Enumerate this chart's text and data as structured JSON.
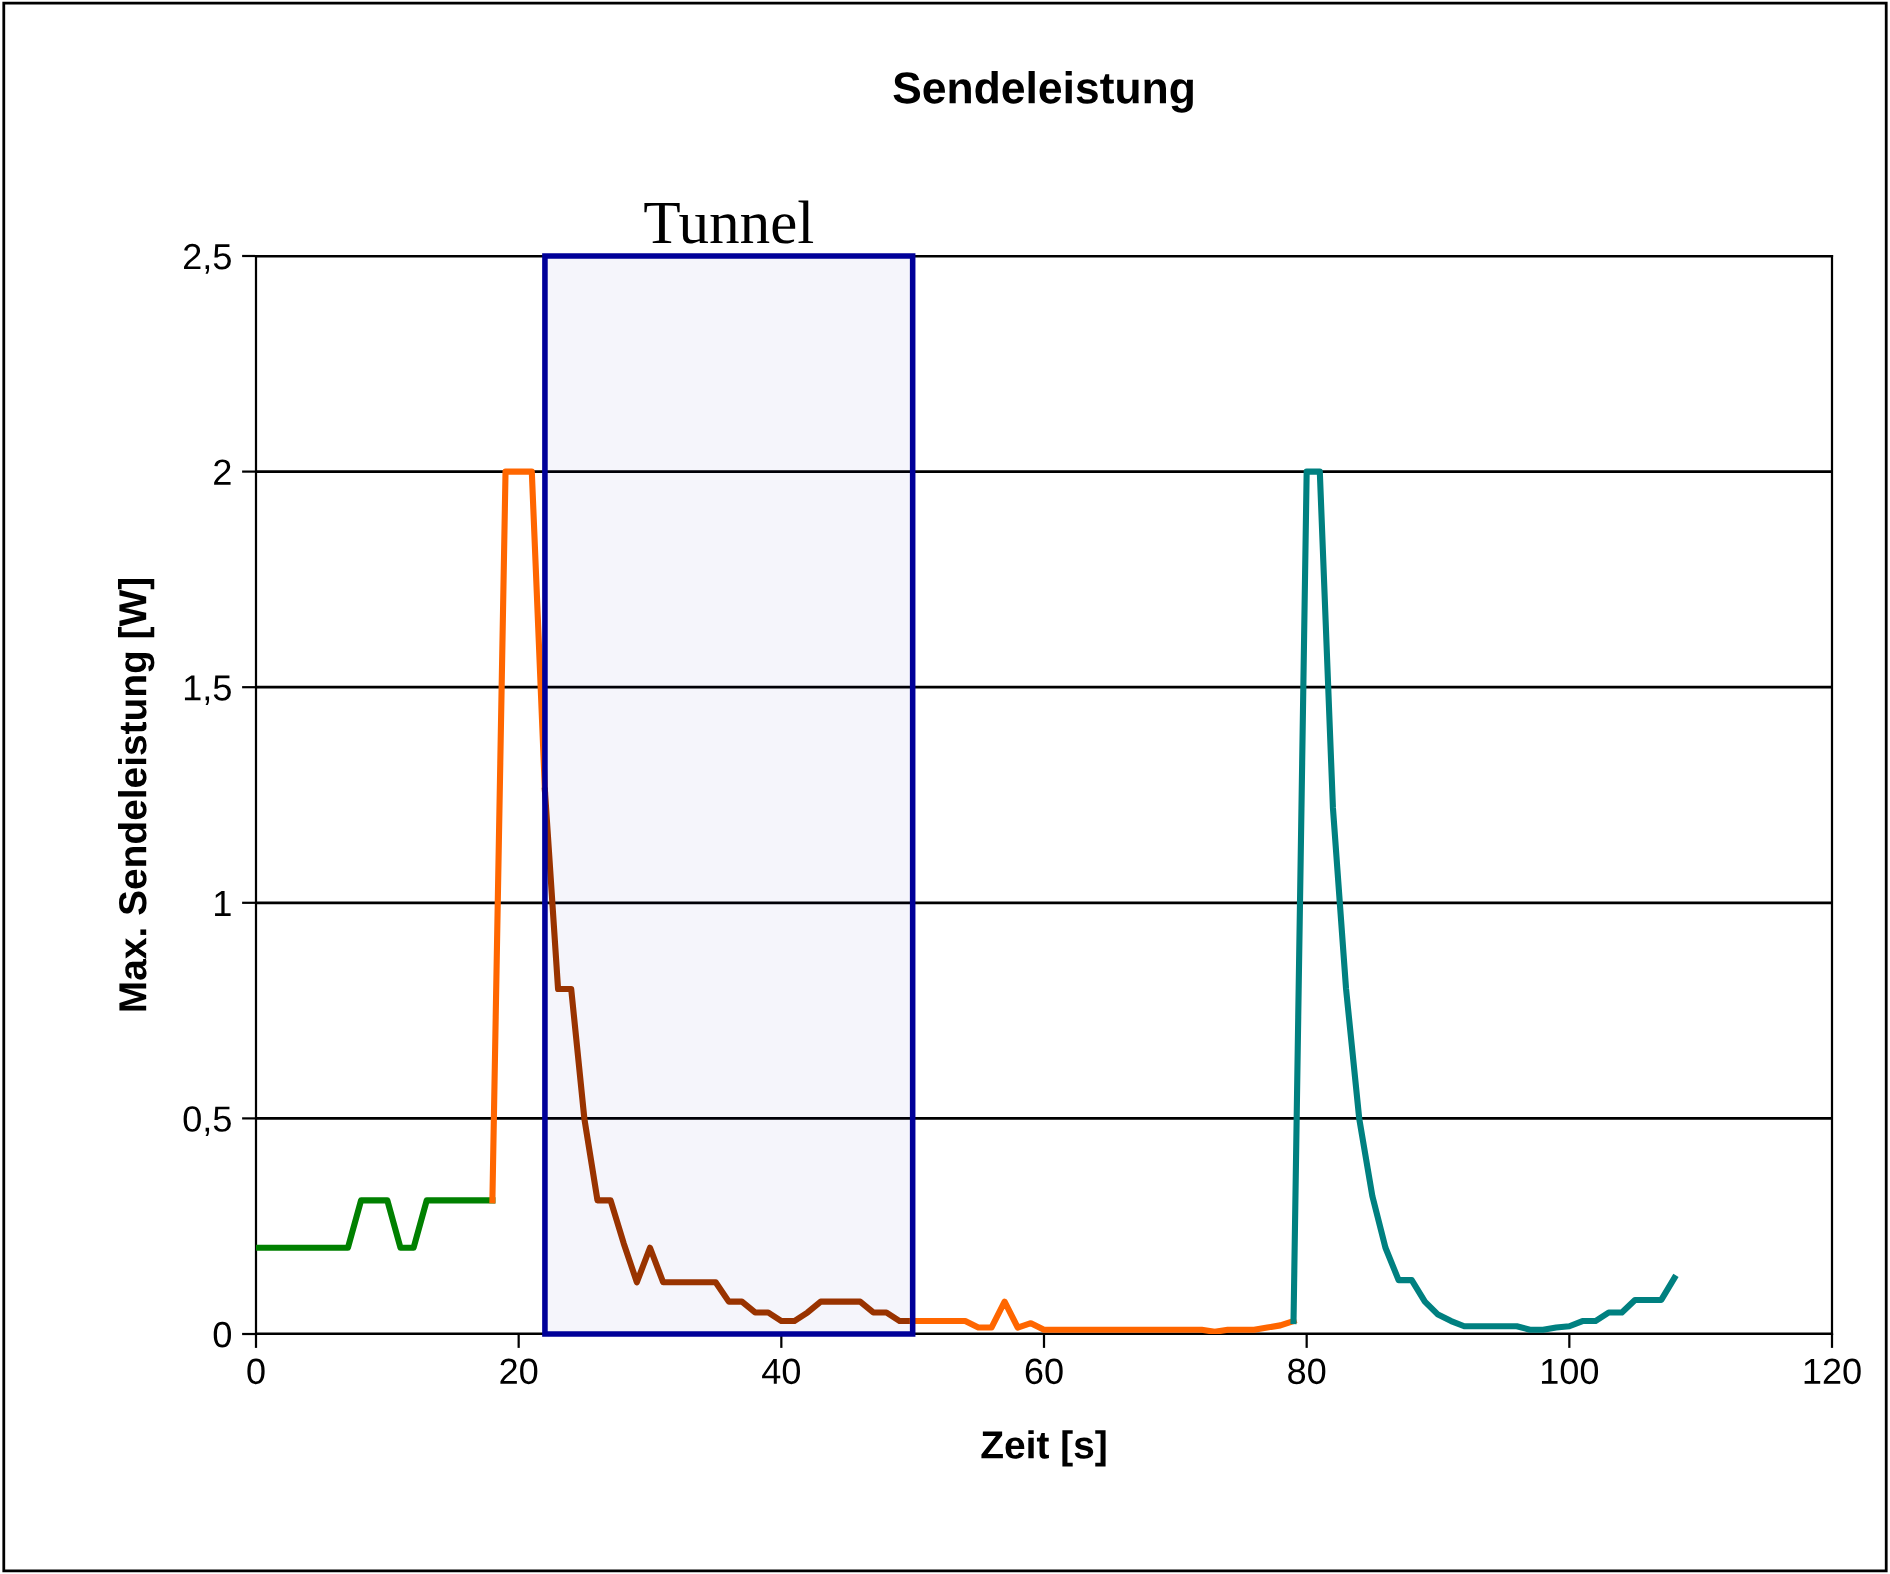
{
  "chart_data": {
    "type": "line",
    "title": "Sendeleistung",
    "xlabel": "Zeit [s]",
    "ylabel": "Max. Sendeleistung [W]",
    "xlim": [
      0,
      120
    ],
    "xticks": [
      0,
      20,
      40,
      60,
      80,
      100,
      120
    ],
    "ylim": [
      0,
      2.5
    ],
    "yticks": [
      0,
      {
        "value": 0.5,
        "label": "0,5"
      },
      1,
      {
        "value": 1.5,
        "label": "1,5"
      },
      2,
      {
        "value": 2.5,
        "label": "2,5"
      }
    ],
    "grid": "y",
    "legend": false,
    "marker": "none",
    "line_style": "solid",
    "bands": [
      {
        "axis": "x",
        "from": 22,
        "to": 50,
        "label": "Tunnel",
        "color": "#000099"
      }
    ],
    "series": [
      {
        "color": "#008000",
        "x": [
          0,
          1,
          2,
          3,
          4,
          5,
          6,
          7,
          8,
          9,
          10,
          11,
          12,
          13,
          14,
          15,
          16,
          17,
          18
        ],
        "values": [
          0.2,
          0.2,
          0.2,
          0.2,
          0.2,
          0.2,
          0.2,
          0.2,
          0.31,
          0.31,
          0.31,
          0.2,
          0.2,
          0.31,
          0.31,
          0.31,
          0.31,
          0.31,
          0.31
        ]
      },
      {
        "color": "#ff6600",
        "x": [
          18,
          19,
          20,
          21,
          22
        ],
        "values": [
          0.31,
          2,
          2,
          2,
          1.26
        ]
      },
      {
        "color": "#993300",
        "x": [
          22,
          23,
          24,
          25,
          26,
          27,
          28,
          29,
          30,
          31,
          32,
          33,
          34,
          35,
          36,
          37,
          38,
          39,
          40,
          41,
          42,
          43,
          44,
          45,
          46,
          47,
          48,
          49,
          50
        ],
        "values": [
          1.26,
          0.8,
          0.8,
          0.5,
          0.31,
          0.31,
          0.21,
          0.12,
          0.2,
          0.12,
          0.12,
          0.12,
          0.12,
          0.12,
          0.075,
          0.075,
          0.05,
          0.05,
          0.03,
          0.03,
          0.05,
          0.075,
          0.075,
          0.075,
          0.075,
          0.05,
          0.05,
          0.03,
          0.03
        ]
      },
      {
        "color": "#ff6600",
        "x": [
          50,
          51,
          52,
          53,
          54,
          55,
          56,
          57,
          58,
          59,
          60,
          61,
          62,
          63,
          64,
          65,
          66,
          67,
          68,
          69,
          70,
          71,
          72,
          73,
          74,
          75,
          76,
          77,
          78,
          79
        ],
        "values": [
          0.03,
          0.03,
          0.03,
          0.03,
          0.03,
          0.015,
          0.015,
          0.075,
          0.015,
          0.025,
          0.01,
          0.01,
          0.01,
          0.01,
          0.01,
          0.01,
          0.01,
          0.01,
          0.01,
          0.01,
          0.01,
          0.01,
          0.01,
          0.005,
          0.01,
          0.01,
          0.01,
          0.015,
          0.02,
          0.03
        ]
      },
      {
        "color": "#008080",
        "x": [
          79,
          80,
          81,
          82,
          83,
          84,
          85,
          86,
          87,
          88,
          89,
          90,
          91,
          92,
          93,
          94,
          95,
          96,
          97,
          98,
          99,
          100,
          101,
          102,
          103,
          104,
          105,
          106,
          107,
          108
        ],
        "values": [
          0.03,
          2,
          2,
          1.22,
          0.8,
          0.5,
          0.32,
          0.2,
          0.125,
          0.125,
          0.075,
          0.045,
          0.03,
          0.018,
          0.018,
          0.018,
          0.018,
          0.018,
          0.01,
          0.01,
          0.015,
          0.018,
          0.03,
          0.03,
          0.05,
          0.05,
          0.079,
          0.079,
          0.079,
          0.13
        ]
      }
    ]
  }
}
